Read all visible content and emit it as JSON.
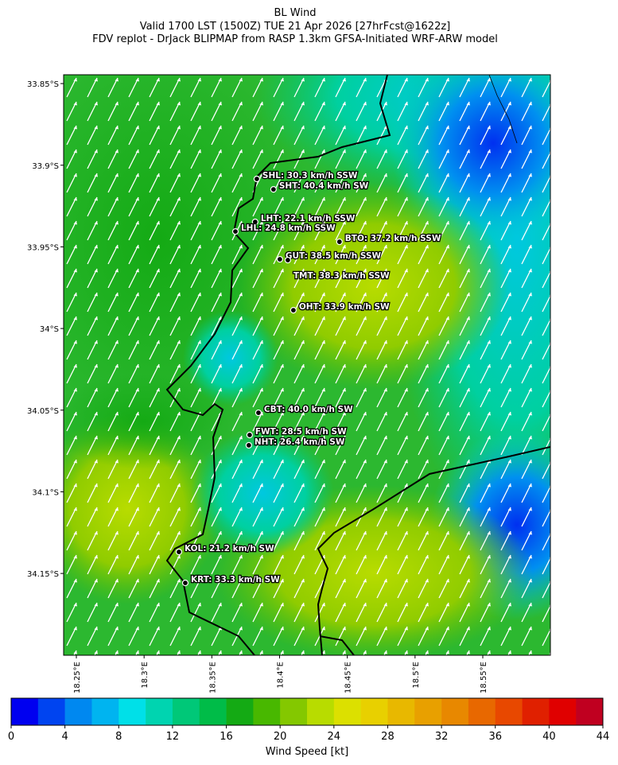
{
  "chart_data": {
    "type": "map",
    "title": [
      "BL Wind",
      "Valid 1700 LST (1500Z) TUE 21 Apr 2026 [27hrFcst@1622z]",
      "FDV replot - DrJack BLIPMAP from RASP 1.3km GFSA-Initiated WRF-ARW model"
    ],
    "xlim": [
      18.2406,
      18.5999
    ],
    "ylim": [
      -33.8446,
      -34.2001
    ],
    "xticks": [
      {
        "value": 18.25,
        "label": "18.25°E"
      },
      {
        "value": 18.3,
        "label": "18.3°E"
      },
      {
        "value": 18.35,
        "label": "18.35°E"
      },
      {
        "value": 18.4,
        "label": "18.4°E"
      },
      {
        "value": 18.45,
        "label": "18.45°E"
      },
      {
        "value": 18.5,
        "label": "18.5°E"
      },
      {
        "value": 18.55,
        "label": "18.55°E"
      }
    ],
    "yticks": [
      {
        "value": -33.85,
        "label": "33.85°S"
      },
      {
        "value": -33.9,
        "label": "33.9°S"
      },
      {
        "value": -33.95,
        "label": "33.95°S"
      },
      {
        "value": -34,
        "label": "34°S"
      },
      {
        "value": -34.05,
        "label": "34.05°S"
      },
      {
        "value": -34.1,
        "label": "34.1°S"
      },
      {
        "value": -34.15,
        "label": "34.15°S"
      }
    ],
    "stations": [
      {
        "label": "SHL: 30.3 km/h SSW",
        "lon": 18.3832,
        "lat": -33.9084
      },
      {
        "label": "SHT: 40.4 km/h SW",
        "lon": 18.3955,
        "lat": -33.9148
      },
      {
        "label": "LHT: 22.1 km/h SSW",
        "lon": 18.382,
        "lat": -33.9347
      },
      {
        "label": "LHL: 24.8 km/h SSW",
        "lon": 18.3674,
        "lat": -33.9406
      },
      {
        "label": "BTO: 37.2 km/h SSW",
        "lon": 18.4442,
        "lat": -33.9469
      },
      {
        "label": "GUT: 38.5 km/h SSW",
        "lon": 18.4002,
        "lat": -33.9576
      },
      {
        "label": "TMT: 38.3 km/h SSW",
        "lon": 18.4061,
        "lat": -33.9581
      },
      {
        "label": "OHT: 33.9 km/h SW",
        "lon": 18.4102,
        "lat": -33.9888
      },
      {
        "label": "CBT: 40.0 km/h SW",
        "lon": 18.3844,
        "lat": -34.0516
      },
      {
        "label": "FWT: 28.5 km/h SW",
        "lon": 18.3779,
        "lat": -34.0652
      },
      {
        "label": "NHT: 26.4 km/h SW",
        "lon": 18.3773,
        "lat": -34.0715
      },
      {
        "label": "KOL: 21.2 km/h SW",
        "lon": 18.3257,
        "lat": -34.1368
      },
      {
        "label": "KRT: 33.3 km/h SW",
        "lon": 18.3304,
        "lat": -34.1558
      }
    ],
    "colorbar": {
      "label": "Wind Speed [kt]",
      "lim": [
        0,
        44
      ],
      "ticks": [
        0,
        4,
        8,
        12,
        16,
        20,
        24,
        28,
        32,
        36,
        40,
        44
      ],
      "colors": [
        "#0000f0",
        "#0044f0",
        "#0088f0",
        "#00b4f0",
        "#00e0e8",
        "#00d4b0",
        "#00c878",
        "#00bc48",
        "#14aa14",
        "#48b800",
        "#84c800",
        "#b8dc00",
        "#dce000",
        "#e8d000",
        "#e8b800",
        "#e8a000",
        "#e88800",
        "#e86800",
        "#e84800",
        "#e02000",
        "#e00000",
        "#c00020"
      ]
    }
  }
}
